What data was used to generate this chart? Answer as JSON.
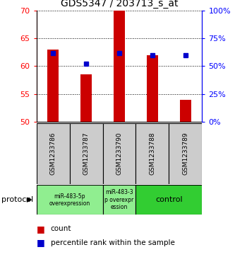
{
  "title": "GDS5347 / 203713_s_at",
  "samples": [
    "GSM1233786",
    "GSM1233787",
    "GSM1233790",
    "GSM1233788",
    "GSM1233789"
  ],
  "bar_values": [
    63.0,
    58.5,
    70.0,
    62.0,
    54.0
  ],
  "bar_base": 50.0,
  "percentile_right": [
    62,
    52,
    62,
    60,
    60
  ],
  "ylim_left": [
    50,
    70
  ],
  "ylim_right": [
    0,
    100
  ],
  "yticks_left": [
    50,
    55,
    60,
    65,
    70
  ],
  "yticks_right": [
    0,
    25,
    50,
    75,
    100
  ],
  "bar_color": "#cc0000",
  "percentile_color": "#0000cc",
  "group0_label": "miR-483-5p\noverexpression",
  "group1_label": "miR-483-3\np overexpr\nession",
  "group2_label": "control",
  "group01_color": "#90EE90",
  "group2_color": "#32CD32",
  "sample_box_color": "#cccccc",
  "protocol_label": "protocol",
  "legend_count_label": "count",
  "legend_percentile_label": "percentile rank within the sample",
  "fig_width": 3.33,
  "fig_height": 3.63,
  "dpi": 100
}
